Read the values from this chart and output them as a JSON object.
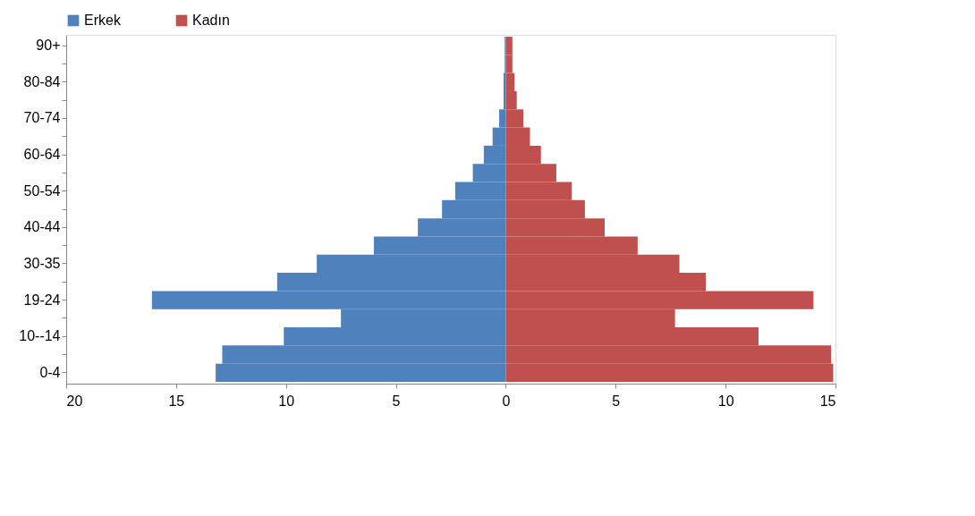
{
  "chart_data": {
    "type": "bar",
    "orientation": "horizontal",
    "stacked": true,
    "categories": [
      "90+",
      null,
      "80-84",
      null,
      "70-74",
      null,
      "60-64",
      null,
      "50-54",
      null,
      "40-44",
      null,
      "30-35",
      null,
      "19-24",
      null,
      "10--14",
      null,
      "0-4"
    ],
    "series": [
      {
        "name": "Erkek",
        "color": "#4f81bd",
        "values": [
          -0.05,
          -0.05,
          -0.1,
          -0.1,
          -0.3,
          -0.6,
          -1.0,
          -1.5,
          -2.3,
          -2.9,
          -4.0,
          -6.0,
          -8.6,
          -10.4,
          -16.1,
          -7.5,
          -10.1,
          -12.9,
          -13.2
        ]
      },
      {
        "name": "Kadın",
        "color": "#c0504d",
        "values": [
          0.3,
          0.3,
          0.4,
          0.5,
          0.8,
          1.1,
          1.6,
          2.3,
          3.0,
          3.6,
          4.5,
          6.0,
          7.9,
          9.1,
          14.0,
          7.7,
          11.5,
          14.8,
          14.9
        ]
      }
    ],
    "xlim": [
      -20,
      15
    ],
    "xticks": [
      {
        "value": -20,
        "label": "20"
      },
      {
        "value": -15,
        "label": "15"
      },
      {
        "value": -10,
        "label": "10"
      },
      {
        "value": -5,
        "label": "5"
      },
      0,
      5,
      10,
      15
    ],
    "grid": false,
    "legend": "top"
  }
}
